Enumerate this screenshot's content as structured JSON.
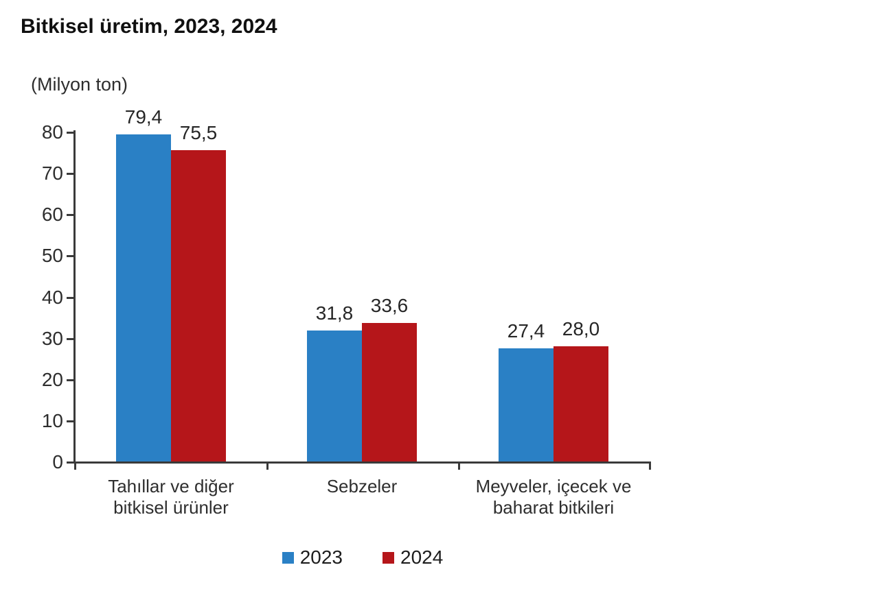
{
  "title": "Bitkisel üretim, 2023, 2024",
  "unit_label": "(Milyon ton)",
  "colors": {
    "series_2023": "#2a80c5",
    "series_2024": "#b5161a",
    "axis": "#3a3a3a",
    "background": "#ffffff"
  },
  "chart_data": {
    "type": "bar",
    "title": "Bitkisel üretim, 2023, 2024",
    "ylabel": "(Milyon ton)",
    "categories": [
      "Tahıllar ve diğer bitkisel ürünler",
      "Sebzeler",
      "Meyveler, içecek ve baharat bitkileri"
    ],
    "category_lines": [
      [
        "Tahıllar ve diğer",
        "bitkisel ürünler"
      ],
      [
        "Sebzeler"
      ],
      [
        "Meyveler, içecek ve",
        "baharat bitkileri"
      ]
    ],
    "series": [
      {
        "name": "2023",
        "color": "#2a80c5",
        "values": [
          79.4,
          31.8,
          27.4
        ],
        "labels": [
          "79,4",
          "31,8",
          "27,4"
        ]
      },
      {
        "name": "2024",
        "color": "#b5161a",
        "values": [
          75.5,
          33.6,
          28.0
        ],
        "labels": [
          "75,5",
          "33,6",
          "28,0"
        ]
      }
    ],
    "ylim": [
      0,
      80
    ],
    "yticks": [
      0,
      10,
      20,
      30,
      40,
      50,
      60,
      70,
      80
    ],
    "grid": false,
    "legend_position": "bottom"
  },
  "legend": {
    "items": [
      {
        "label": "2023",
        "color": "#2a80c5"
      },
      {
        "label": "2024",
        "color": "#b5161a"
      }
    ]
  }
}
